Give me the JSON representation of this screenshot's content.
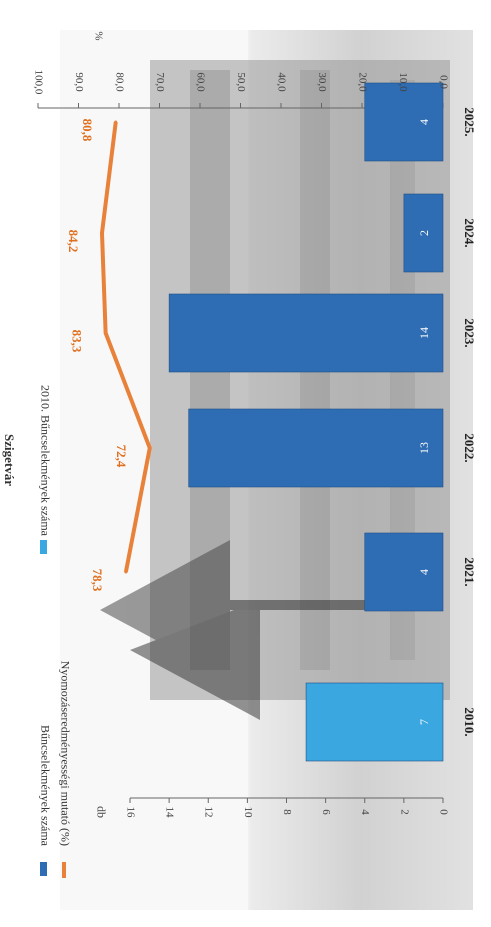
{
  "chart_data": {
    "type": "bar+line",
    "title": "Szigetvár",
    "categories": [
      "2010.",
      "2021.",
      "2022.",
      "2023.",
      "2024.",
      "2025."
    ],
    "series": [
      {
        "name": "Bűncselekmények száma",
        "kind": "bar",
        "axis": "left",
        "values": [
          7,
          4,
          13,
          14,
          2,
          4
        ],
        "value_labels": [
          "7",
          "4",
          "13",
          "14",
          "2",
          "4"
        ]
      },
      {
        "name": "Nyomozáseredményességi mutató (%)",
        "kind": "line",
        "axis": "right",
        "values": [
          null,
          78.3,
          72.4,
          83.3,
          84.2,
          80.8
        ],
        "value_labels": [
          "",
          "78,3",
          "72,4",
          "83,3",
          "84,2",
          "80,8"
        ]
      }
    ],
    "legend_extra": "2010. Bűncselekmények száma",
    "left_axis": {
      "unit": "db",
      "range": [
        0,
        16
      ],
      "ticks": [
        "0",
        "2",
        "4",
        "6",
        "8",
        "10",
        "12",
        "14",
        "16"
      ]
    },
    "right_axis": {
      "unit": "%",
      "range": [
        0,
        100
      ],
      "ticks": [
        "0,0",
        "10,0",
        "20,0",
        "30,0",
        "40,0",
        "50,0",
        "60,0",
        "70,0",
        "80,0",
        "90,0",
        "100,0"
      ]
    },
    "orientation": "rotated 90° clockwise",
    "legend_position": "top",
    "grid": false,
    "background": "grayscale photograph of a building",
    "colors": {
      "bar": "#2e6db4",
      "bar_2010": "#3aa7e0",
      "line": "#e8823a",
      "line_label": "#e07020",
      "axis_text": "#444444"
    }
  }
}
